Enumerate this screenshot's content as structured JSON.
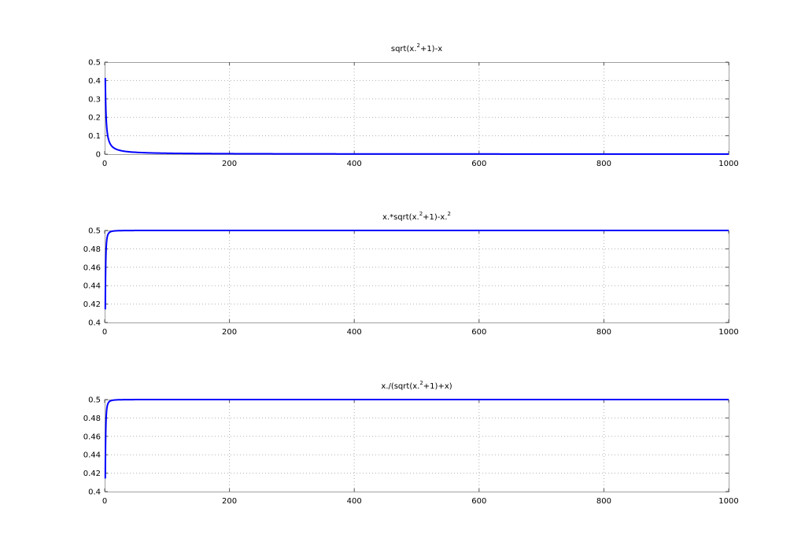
{
  "colors": {
    "line": "#0000ff",
    "grid": "#b0b0b0",
    "axes": "#a0a0a0",
    "background": "#ffffff"
  },
  "chart_data": [
    {
      "type": "line",
      "title": {
        "segments": [
          "sqrt(x.",
          "2",
          "+1)-x"
        ],
        "superscript_indices": [
          1
        ]
      },
      "xlabel": "",
      "ylabel": "",
      "xlim": [
        0,
        1000
      ],
      "ylim": [
        0,
        0.5
      ],
      "xticks": [
        0,
        200,
        400,
        600,
        800,
        1000
      ],
      "xtick_labels": [
        "0",
        "200",
        "400",
        "600",
        "800",
        "1000"
      ],
      "yticks": [
        0,
        0.1,
        0.2,
        0.3,
        0.4,
        0.5
      ],
      "ytick_labels": [
        "0",
        "0.1",
        "0.2",
        "0.3",
        "0.4",
        "0.5"
      ],
      "grid": true,
      "series": [
        {
          "name": "sqrt(x.^2+1)-x",
          "function": "sqrt(x^2+1)-x",
          "x_start": 1,
          "x_end": 1000,
          "line_color": "#0000ff"
        }
      ]
    },
    {
      "type": "line",
      "title": {
        "segments": [
          "x.*sqrt(x.",
          "2",
          "+1)-x.",
          "2"
        ],
        "superscript_indices": [
          1,
          3
        ]
      },
      "xlabel": "",
      "ylabel": "",
      "xlim": [
        0,
        1000
      ],
      "ylim": [
        0.4,
        0.5
      ],
      "xticks": [
        0,
        200,
        400,
        600,
        800,
        1000
      ],
      "xtick_labels": [
        "0",
        "200",
        "400",
        "600",
        "800",
        "1000"
      ],
      "yticks": [
        0.4,
        0.42,
        0.44,
        0.46,
        0.48,
        0.5
      ],
      "ytick_labels": [
        "0.4",
        "0.42",
        "0.44",
        "0.46",
        "0.48",
        "0.5"
      ],
      "grid": true,
      "series": [
        {
          "name": "x.*sqrt(x.^2+1)-x.^2",
          "function": "x*sqrt(x^2+1)-x^2",
          "x_start": 1,
          "x_end": 1000,
          "line_color": "#0000ff"
        }
      ]
    },
    {
      "type": "line",
      "title": {
        "segments": [
          "x./(sqrt(x.",
          "2",
          "+1)+x)"
        ],
        "superscript_indices": [
          1
        ]
      },
      "xlabel": "",
      "ylabel": "",
      "xlim": [
        0,
        1000
      ],
      "ylim": [
        0.4,
        0.5
      ],
      "xticks": [
        0,
        200,
        400,
        600,
        800,
        1000
      ],
      "xtick_labels": [
        "0",
        "200",
        "400",
        "600",
        "800",
        "1000"
      ],
      "yticks": [
        0.4,
        0.42,
        0.44,
        0.46,
        0.48,
        0.5
      ],
      "ytick_labels": [
        "0.4",
        "0.42",
        "0.44",
        "0.46",
        "0.48",
        "0.5"
      ],
      "grid": true,
      "series": [
        {
          "name": "x./(sqrt(x.^2+1)+x)",
          "function": "x/(sqrt(x^2+1)+x)",
          "x_start": 1,
          "x_end": 1000,
          "line_color": "#0000ff"
        }
      ]
    }
  ]
}
